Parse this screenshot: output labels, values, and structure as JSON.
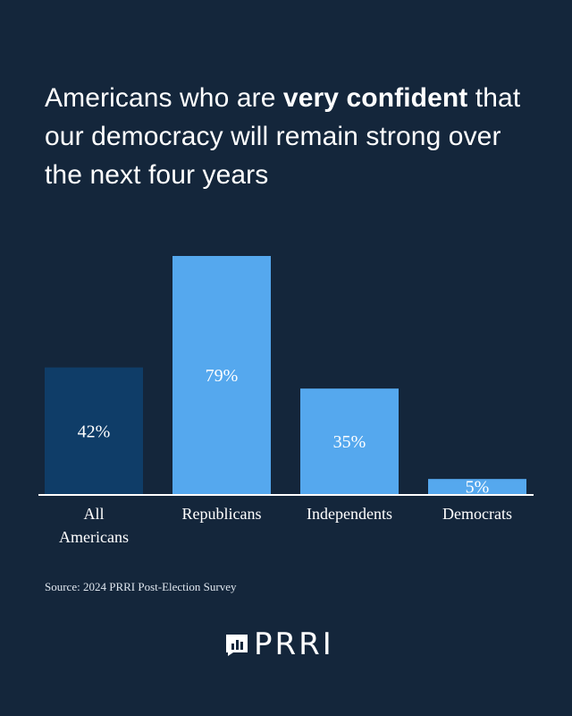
{
  "title": {
    "before": "Americans who are ",
    "emphasis": "very confident",
    "after": " that our democracy will remain strong over the next four years"
  },
  "colors": {
    "background": "#14263b",
    "highlight_bar": "#0f3d68",
    "bar": "#55a8ee",
    "axis": "#ffffff"
  },
  "chart_data": {
    "type": "bar",
    "title": "Americans who are very confident that our democracy will remain strong over the next four years",
    "categories": [
      "All Americans",
      "Republicans",
      "Independents",
      "Democrats"
    ],
    "category_lines": [
      [
        "All",
        "Americans"
      ],
      [
        "Republicans"
      ],
      [
        "Independents"
      ],
      [
        "Democrats"
      ]
    ],
    "values": [
      42,
      79,
      35,
      5
    ],
    "value_labels": [
      "42%",
      "79%",
      "35%",
      "5%"
    ],
    "highlight_index": 0,
    "ylim": [
      0,
      79
    ],
    "xlabel": "",
    "ylabel": "",
    "grid": false,
    "legend": "none"
  },
  "source": "Source: 2024 PRRI Post-Election Survey",
  "logo": {
    "icon": "prri-logo-icon",
    "text": "PRRI"
  }
}
